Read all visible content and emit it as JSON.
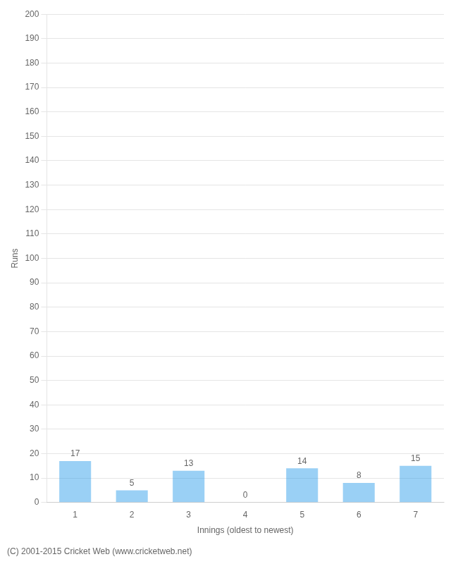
{
  "chart_data": {
    "type": "bar",
    "xlabel": "Innings (oldest to newest)",
    "ylabel": "Runs",
    "categories": [
      "1",
      "2",
      "3",
      "4",
      "5",
      "6",
      "7"
    ],
    "values": [
      17,
      5,
      13,
      0,
      14,
      8,
      15
    ],
    "ylim": [
      0,
      200
    ],
    "yticks": [
      0,
      10,
      20,
      30,
      40,
      50,
      60,
      70,
      80,
      90,
      100,
      110,
      120,
      130,
      140,
      150,
      160,
      170,
      180,
      190,
      200
    ],
    "grid": true,
    "data_labels": true,
    "annotations": [
      "(C) 2001-2015 Cricket Web (www.cricketweb.net)"
    ]
  }
}
